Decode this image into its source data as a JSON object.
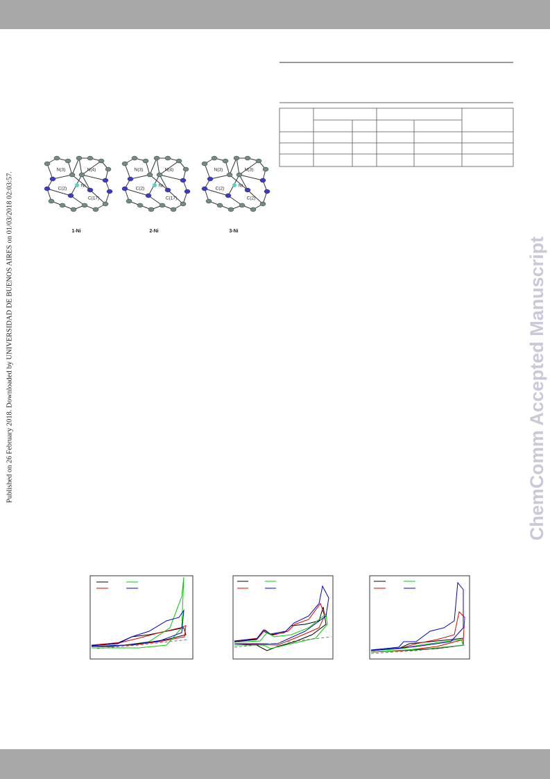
{
  "sidebar": {
    "published": "Published on 26 February 2018. Downloaded by UNIVERSIDAD DE BUENOS AIRES on 01/03/2018 02:03:57."
  },
  "watermark": "ChemComm Accepted Manuscript",
  "figure": {
    "molecules": [
      {
        "label": "1-Ni",
        "atoms": [
          "N(3)",
          "N(4)",
          "C(2)",
          "Ni",
          "C(17)"
        ]
      },
      {
        "label": "2-Ni",
        "atoms": [
          "N(3)",
          "N(4)",
          "C(2)",
          "Ni",
          "C(17)"
        ]
      },
      {
        "label": "3-Ni",
        "atoms": [
          "N(3)",
          "N(3)",
          "C(2)",
          "Ni",
          "C(2)"
        ]
      }
    ]
  }
}
